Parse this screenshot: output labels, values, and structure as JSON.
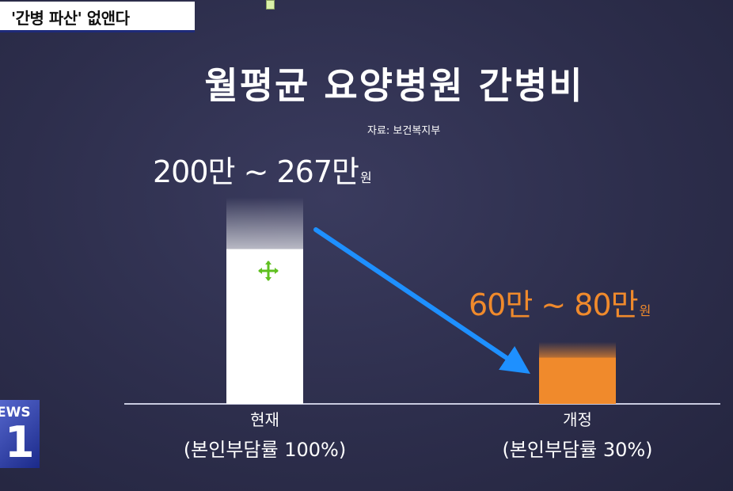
{
  "caption": "'간병 파산' 없앤다",
  "title": "월평균 요양병원 간병비",
  "source": "자료: 보건복지부",
  "watermark": {
    "line1": "EWS",
    "line2": "1"
  },
  "colors": {
    "current": "#ffffff",
    "reform": "#f08a2c",
    "arrow": "#1e90ff",
    "text": "#ffffff"
  },
  "chart_data": {
    "type": "bar",
    "categories": [
      "현재",
      "개정"
    ],
    "category_sublabels": [
      "(본인부담률 100%)",
      "(본인부담률 30%)"
    ],
    "value_labels": [
      {
        "main": "200만 ~ 267만",
        "unit": "원"
      },
      {
        "main": "60만 ~ 80만",
        "unit": "원"
      }
    ],
    "ranges": [
      [
        200,
        267
      ],
      [
        60,
        80
      ]
    ],
    "unit": "만원",
    "ylim": [
      0,
      267
    ],
    "xlabel": "",
    "ylabel": ""
  }
}
